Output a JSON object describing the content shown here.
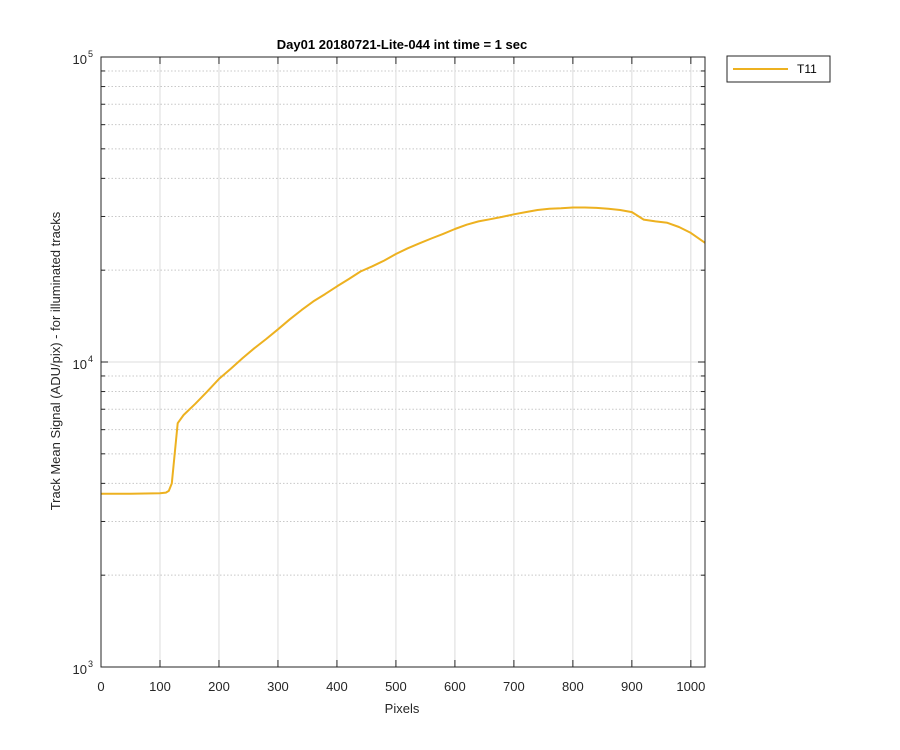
{
  "chart_data": {
    "type": "line",
    "title": "Day01 20180721-Lite-044 int time = 1 sec",
    "xlabel": "Pixels",
    "ylabel": "Track Mean Signal (ADU/pix) - for illuminated tracks",
    "xlim": [
      0,
      1024
    ],
    "ylim": [
      1000,
      100000
    ],
    "yscale": "log",
    "grid": true,
    "legend_location": "outside-top-right",
    "x_ticks": [
      0,
      100,
      200,
      300,
      400,
      500,
      600,
      700,
      800,
      900,
      1000
    ],
    "x_tick_labels": [
      "0",
      "100",
      "200",
      "300",
      "400",
      "500",
      "600",
      "700",
      "800",
      "900",
      "1000"
    ],
    "y_ticks": [
      {
        "value": 1000,
        "base": "10",
        "exp": "3"
      },
      {
        "value": 10000,
        "base": "10",
        "exp": "4"
      },
      {
        "value": 100000,
        "base": "10",
        "exp": "5"
      }
    ],
    "series": [
      {
        "name": "T11",
        "color": "#EDB120",
        "x": [
          0,
          50,
          100,
          110,
          115,
          120,
          125,
          130,
          140,
          160,
          180,
          200,
          220,
          240,
          260,
          280,
          300,
          320,
          340,
          360,
          380,
          400,
          420,
          440,
          460,
          480,
          500,
          520,
          540,
          560,
          580,
          600,
          620,
          640,
          660,
          680,
          700,
          720,
          740,
          760,
          780,
          800,
          820,
          840,
          860,
          880,
          900,
          920,
          940,
          960,
          980,
          1000,
          1024
        ],
        "y": [
          3700,
          3700,
          3710,
          3730,
          3780,
          4000,
          5000,
          6300,
          6700,
          7300,
          8000,
          8800,
          9500,
          10300,
          11100,
          11900,
          12800,
          13800,
          14800,
          15800,
          16700,
          17700,
          18700,
          19800,
          20600,
          21500,
          22600,
          23600,
          24500,
          25400,
          26300,
          27300,
          28200,
          28900,
          29400,
          29900,
          30500,
          31000,
          31500,
          31800,
          31900,
          32100,
          32100,
          32000,
          31800,
          31500,
          31000,
          29300,
          28900,
          28600,
          27700,
          26500,
          24600
        ]
      }
    ]
  }
}
